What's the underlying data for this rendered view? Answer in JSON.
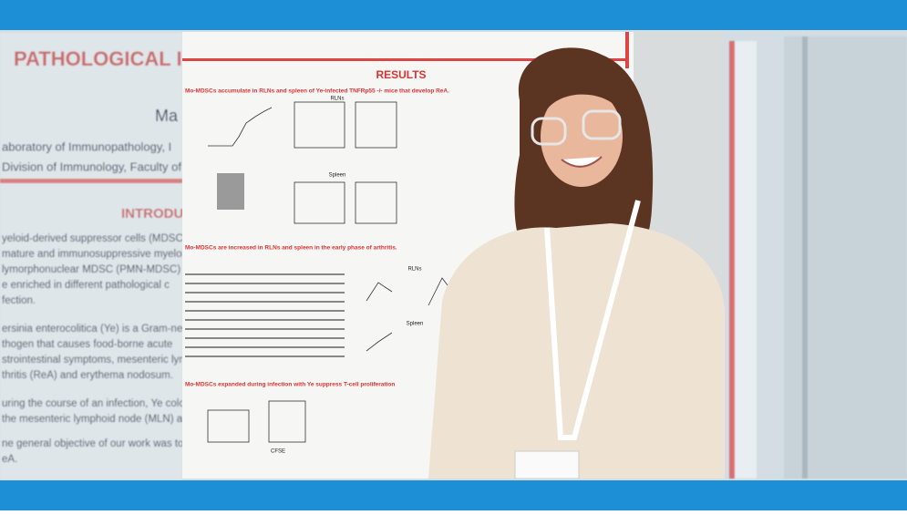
{
  "background_poster": {
    "title": "PATHOLOGICAL I",
    "author": "Ma",
    "affiliations": [
      "aboratory of Immunopathology, I",
      "Division of Immunology, Faculty of"
    ],
    "section": "INTRODU",
    "lines": [
      "yeloid-derived suppressor cells (MDSC",
      "mature and immunosuppressive myeloid",
      "lymorphonuclear MDSC (PMN-MDSC) a",
      "e enriched in different pathological c",
      "fection.",
      "ersinia enterocolitica (Ye) is a Gram-neg",
      "thogen that causes food-borne acute",
      "strointestinal symptoms, mesenteric lym",
      "thritis (ReA) and erythema nodosum.",
      "uring the course of an infection, Ye coloni",
      "the mesenteric lymphoid node (MLN) and",
      "ne general objective of our work was to",
      "eA."
    ]
  },
  "photo": {
    "poster": {
      "heading": "RESULTS",
      "sections": [
        "Mo-MDSCs accumulate in RLNs and spleen of Ye-infected TNFRp55 -/- mice that develop ReA.",
        "Mo-MDSCs are increased in RLNs and spleen in the early phase of arthritis.",
        "Mo-MDSCs expanded during infection with Ye suppress T-cell proliferation"
      ],
      "panel_labels": [
        "RLNs",
        "Spleen",
        "RLNs",
        "Spleen",
        "CFSE"
      ]
    }
  }
}
